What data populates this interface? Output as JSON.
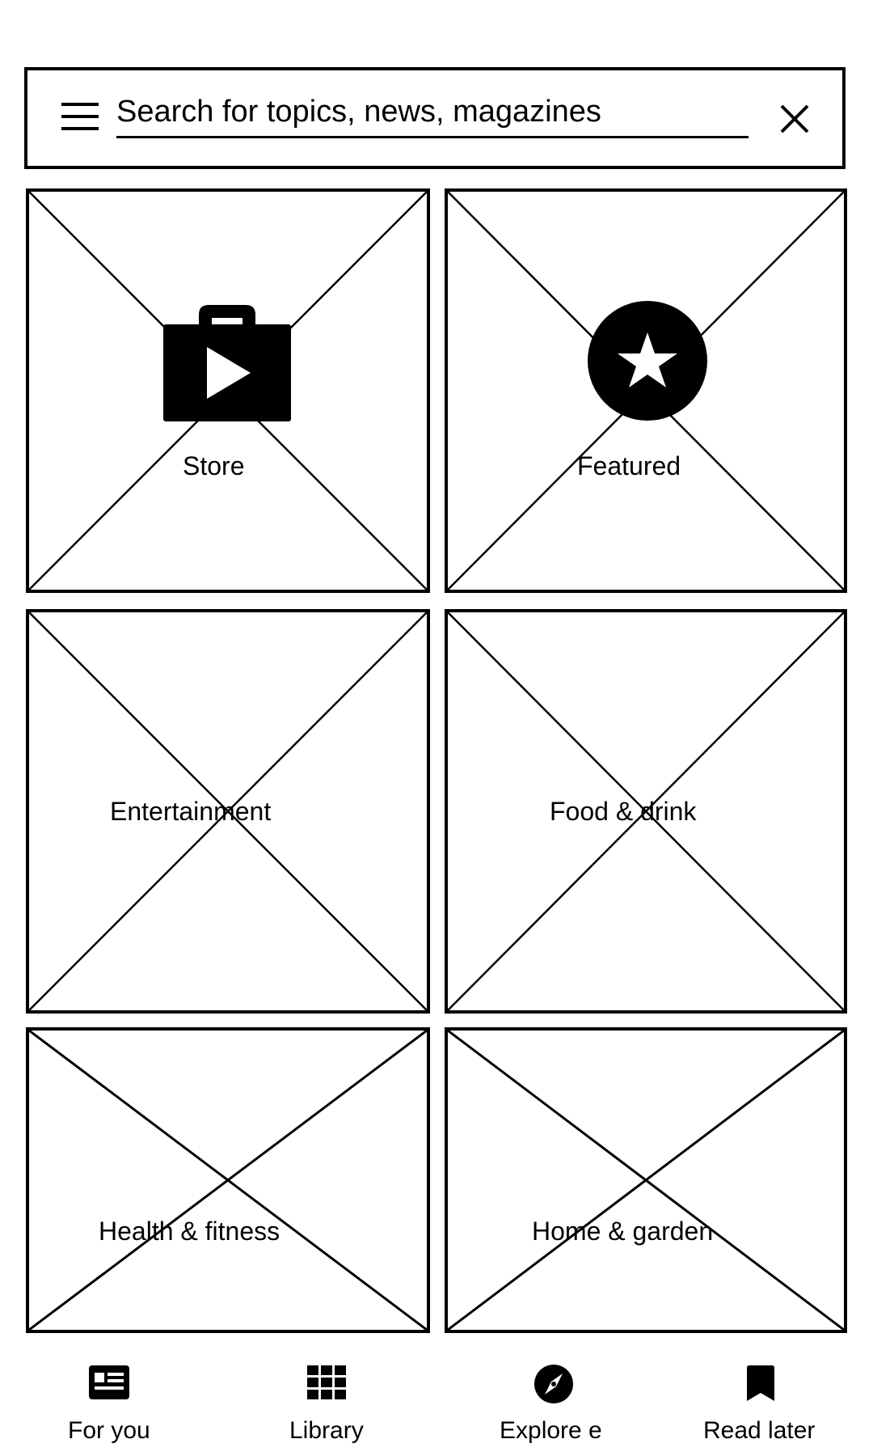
{
  "search": {
    "placeholder": "Search for topics, news, magazines",
    "menu_icon": "hamburger-menu-icon",
    "clear_icon": "close-icon"
  },
  "tiles": [
    {
      "label": "Store",
      "icon": "shopping-bag-play-icon"
    },
    {
      "label": "Featured",
      "icon": "star-circle-icon"
    },
    {
      "label": "Entertainment"
    },
    {
      "label": "Food & drink"
    },
    {
      "label": "Health & fitness"
    },
    {
      "label": "Home & garden"
    }
  ],
  "bottom_nav": {
    "items": [
      {
        "label": "For you",
        "icon": "newspaper-icon"
      },
      {
        "label": "Library",
        "icon": "grid-icon"
      },
      {
        "label": "Explore e",
        "icon": "compass-icon"
      },
      {
        "label": "Read later",
        "icon": "bookmark-icon"
      }
    ]
  },
  "colors": {
    "foreground": "#000000",
    "background": "#ffffff"
  }
}
